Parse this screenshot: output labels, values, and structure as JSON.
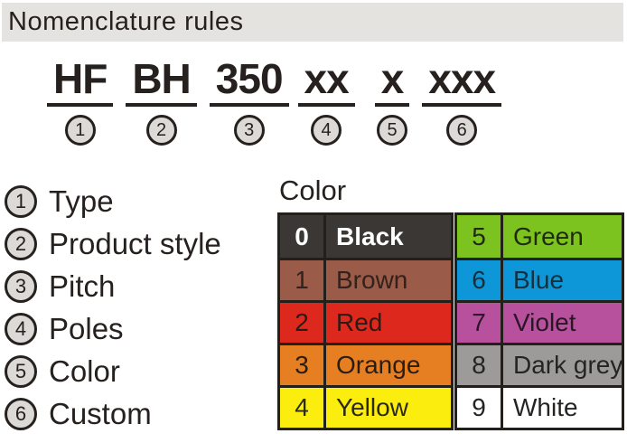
{
  "header": {
    "title": "Nomenclature rules"
  },
  "part_number": {
    "segments": [
      {
        "text": "HF",
        "index": "1"
      },
      {
        "text": "BH",
        "index": "2"
      },
      {
        "text": "350",
        "index": "3"
      },
      {
        "text": "xx",
        "index": "4"
      },
      {
        "text": "x",
        "index": "5"
      },
      {
        "text": "xxx",
        "index": "6"
      }
    ]
  },
  "legend": {
    "items": [
      {
        "index": "1",
        "label": "Type"
      },
      {
        "index": "2",
        "label": "Product style"
      },
      {
        "index": "3",
        "label": "Pitch"
      },
      {
        "index": "4",
        "label": "Poles"
      },
      {
        "index": "5",
        "label": "Color"
      },
      {
        "index": "6",
        "label": "Custom"
      }
    ]
  },
  "color_table": {
    "title": "Color",
    "left": [
      {
        "code": "0",
        "name": "Black",
        "bg": "#3b3735",
        "fg": "#ffffff",
        "bold": true
      },
      {
        "code": "1",
        "name": "Brown",
        "bg": "#9b5b49",
        "fg": "#33211b"
      },
      {
        "code": "2",
        "name": "Red",
        "bg": "#dd291d",
        "fg": "#2c1a15"
      },
      {
        "code": "3",
        "name": "Orange",
        "bg": "#e67e22",
        "fg": "#2c1d12"
      },
      {
        "code": "4",
        "name": "Yellow",
        "bg": "#fbee0f",
        "fg": "#2c2914"
      }
    ],
    "right": [
      {
        "code": "5",
        "name": "Green",
        "bg": "#7cc31f",
        "fg": "#1f2a12"
      },
      {
        "code": "6",
        "name": "Blue",
        "bg": "#0d97d8",
        "fg": "#15303d"
      },
      {
        "code": "7",
        "name": "Violet",
        "bg": "#b7519e",
        "fg": "#2b1626"
      },
      {
        "code": "8",
        "name": "Dark grey",
        "bg": "#9c9b99",
        "fg": "#262422"
      },
      {
        "code": "9",
        "name": "White",
        "bg": "#ffffff",
        "fg": "#262422"
      }
    ]
  },
  "colors": {
    "ink": "#26211e",
    "bar_bg": "#e5e3e0",
    "circle_fill": "#dbdad7",
    "table_border": "#231f1b",
    "page_bg": "#ffffff"
  }
}
